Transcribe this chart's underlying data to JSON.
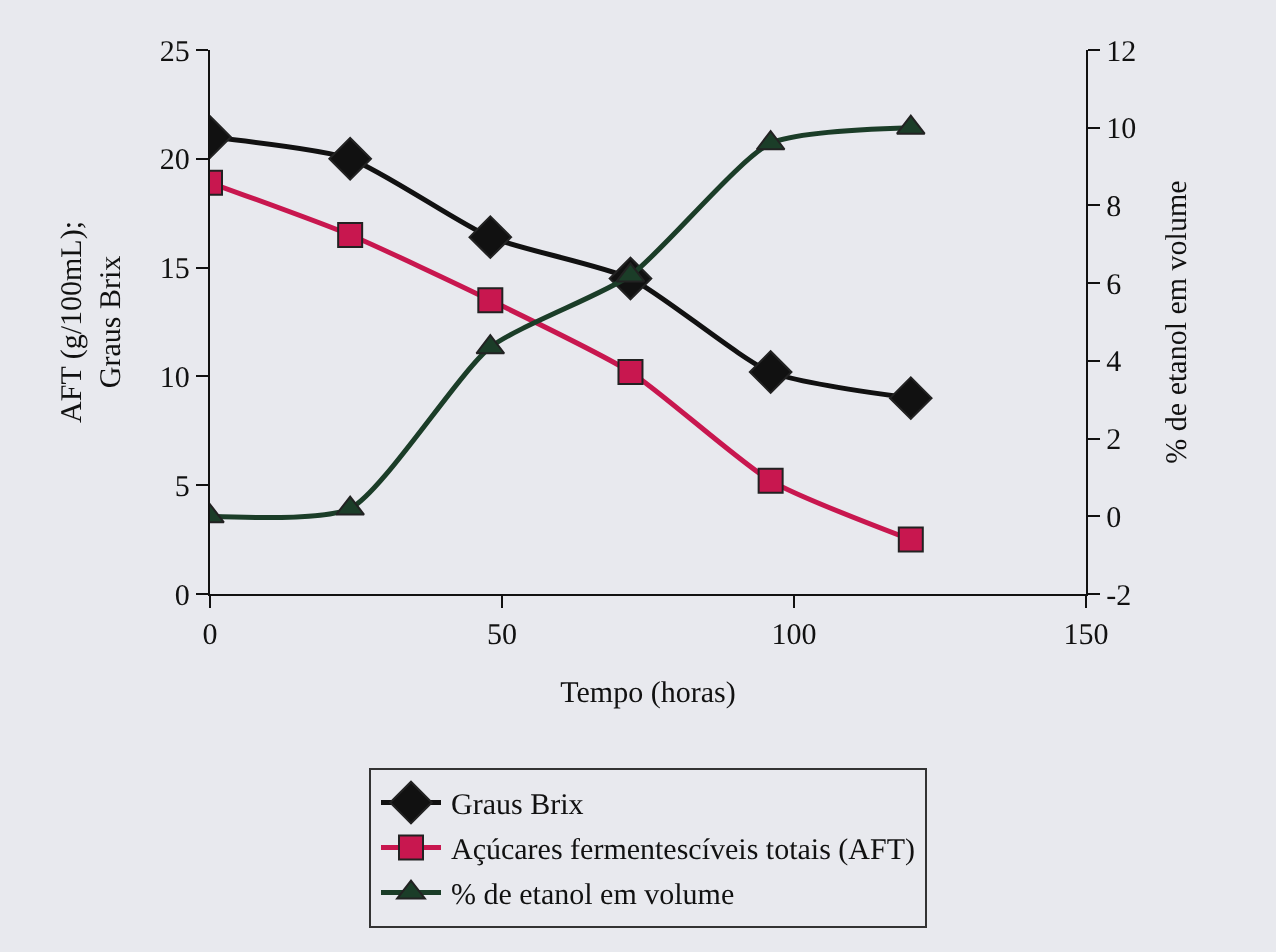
{
  "chart_data": {
    "type": "line",
    "xlabel": "Tempo (horas)",
    "ylabel": "AFT (g/100mL);Graus Brix",
    "y2label": "% de etanol em volume",
    "x": [
      0,
      24,
      48,
      72,
      96,
      120
    ],
    "xlim": [
      0,
      150
    ],
    "xticks": [
      0,
      50,
      100,
      150
    ],
    "ylim": [
      0,
      25
    ],
    "yticks": [
      0,
      5,
      10,
      15,
      20,
      25
    ],
    "y2lim": [
      -2,
      12
    ],
    "y2ticks": [
      -2,
      0,
      2,
      4,
      6,
      8,
      10,
      12
    ],
    "grid": false,
    "legend": "bottom",
    "series": [
      {
        "name": "Graus Brix",
        "color": "#111111",
        "marker": "diamond",
        "values": [
          21,
          20,
          16.4,
          14.5,
          10.2,
          9
        ]
      },
      {
        "name": "Açúcares fermentescíveis totais (AFT)",
        "color": "#c8174f",
        "marker": "square",
        "values": [
          18.9,
          16.5,
          13.5,
          10.2,
          5.2,
          2.5
        ]
      },
      {
        "name": "% de etanol em volume",
        "color": "#1b3d28",
        "marker": "triangle",
        "axis": "y2",
        "values": [
          0,
          0.2,
          4.35,
          6.2,
          9.6,
          10.0
        ]
      }
    ]
  }
}
